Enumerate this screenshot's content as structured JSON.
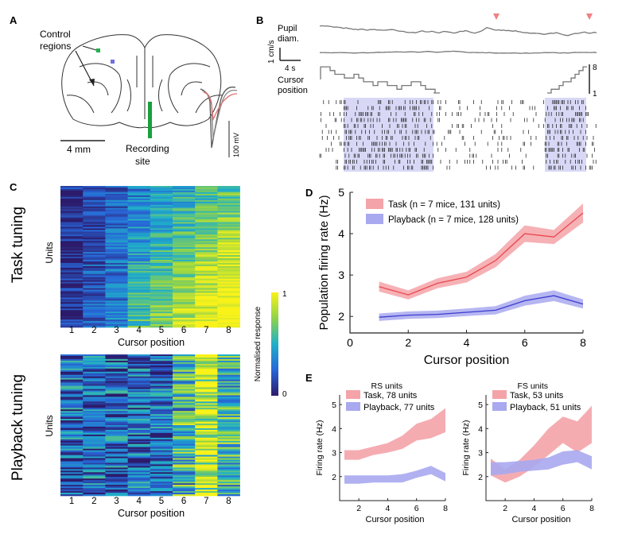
{
  "panels": {
    "A": {
      "letter": "A",
      "control_label_1": "Control",
      "control_label_2": "regions",
      "recording_label_1": "Recording",
      "recording_label_2": "site",
      "scale_label": "4 mm",
      "voltage_label": "100 mV"
    },
    "B": {
      "letter": "B",
      "pupil_label_1": "Pupil",
      "pupil_label_2": "diam.",
      "speed_scale": "1 cm/s",
      "time_scale": "4 s",
      "cursor_label_1": "Cursor",
      "cursor_label_2": "position",
      "cursor_max": "8",
      "cursor_min": "1"
    },
    "C": {
      "letter": "C",
      "task_title": "Task tuning",
      "playback_title": "Playback tuning",
      "ylabel": "Units",
      "xlabel": "Cursor position",
      "x_ticks": [
        "1",
        "2",
        "3",
        "4",
        "5",
        "6",
        "7",
        "8"
      ],
      "colorbar_label": "Normalised response",
      "colorbar_max": "1",
      "colorbar_min": "0"
    },
    "D": {
      "letter": "D"
    },
    "E": {
      "letter": "E"
    }
  },
  "colors": {
    "task": "#e8474f",
    "task_band": "#f4a3a8",
    "playback": "#3c3ccf",
    "playback_band": "#a9a9f0",
    "axis": "#222222"
  },
  "chart_data": [
    {
      "type": "line",
      "panel": "D",
      "xlabel": "Cursor position",
      "ylabel": "Population firing rate (Hz)",
      "xlim": [
        0,
        8
      ],
      "ylim": [
        1.6,
        5
      ],
      "x_ticks": [
        "0",
        "2",
        "4",
        "6",
        "8"
      ],
      "y_ticks": [
        "2",
        "3",
        "4",
        "5"
      ],
      "legend_placement": "top-left",
      "x": [
        1,
        2,
        3,
        4,
        5,
        6,
        7,
        8
      ],
      "series": [
        {
          "name": "Task (n = 7 mice, 131 units)",
          "values": [
            2.72,
            2.52,
            2.8,
            2.95,
            3.35,
            4.0,
            3.92,
            4.5
          ],
          "error": [
            0.12,
            0.11,
            0.12,
            0.13,
            0.16,
            0.2,
            0.17,
            0.23
          ]
        },
        {
          "name": "Playback (n = 7 mice, 128 units)",
          "values": [
            1.98,
            2.03,
            2.05,
            2.1,
            2.15,
            2.38,
            2.5,
            2.3
          ],
          "error": [
            0.09,
            0.09,
            0.09,
            0.09,
            0.1,
            0.12,
            0.13,
            0.11
          ]
        }
      ]
    },
    {
      "type": "area",
      "panel": "E",
      "title": "RS units",
      "xlabel": "Cursor position",
      "ylabel": "Firing rate (Hz)",
      "xlim": [
        1,
        8
      ],
      "ylim": [
        1,
        5.4
      ],
      "x_ticks": [
        "2",
        "4",
        "6",
        "8"
      ],
      "y_ticks": [
        "2",
        "3",
        "4",
        "5"
      ],
      "x": [
        1,
        2,
        3,
        4,
        5,
        6,
        7,
        8
      ],
      "series": [
        {
          "name": "Task, 78 units",
          "lower": [
            2.7,
            2.7,
            2.9,
            3.0,
            3.15,
            3.5,
            3.6,
            3.85
          ],
          "upper": [
            3.1,
            3.1,
            3.25,
            3.4,
            3.7,
            4.2,
            4.4,
            4.85
          ]
        },
        {
          "name": "Playback, 77 units",
          "lower": [
            1.7,
            1.7,
            1.75,
            1.75,
            1.75,
            1.95,
            2.1,
            1.8
          ],
          "upper": [
            2.05,
            2.05,
            2.05,
            2.05,
            2.1,
            2.25,
            2.45,
            2.15
          ]
        }
      ]
    },
    {
      "type": "area",
      "panel": "E",
      "title": "FS units",
      "xlabel": "Cursor position",
      "ylabel": "Firing rate (Hz)",
      "xlim": [
        1,
        8
      ],
      "ylim": [
        1,
        5.4
      ],
      "x_ticks": [
        "2",
        "4",
        "6",
        "8"
      ],
      "y_ticks": [
        "2",
        "3",
        "4",
        "5"
      ],
      "x": [
        1,
        2,
        3,
        4,
        5,
        6,
        7,
        8
      ],
      "series": [
        {
          "name": "Task, 53 units",
          "lower": [
            2.05,
            1.75,
            2.0,
            2.4,
            2.9,
            3.4,
            3.0,
            3.4
          ],
          "upper": [
            2.75,
            2.3,
            2.7,
            3.3,
            4.0,
            4.5,
            4.3,
            4.95
          ]
        },
        {
          "name": "Playback, 51 units",
          "lower": [
            2.05,
            2.1,
            2.2,
            2.25,
            2.3,
            2.5,
            2.6,
            2.3
          ],
          "upper": [
            2.6,
            2.6,
            2.65,
            2.7,
            2.8,
            3.05,
            3.1,
            2.85
          ]
        }
      ]
    }
  ]
}
